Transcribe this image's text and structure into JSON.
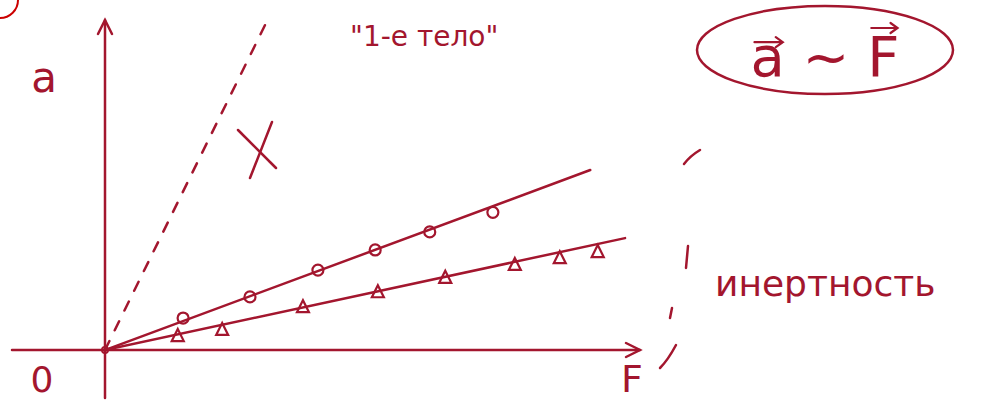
{
  "chart_data": {
    "type": "line",
    "x_label": "F",
    "y_label": "a",
    "origin_label": "0",
    "annotations": [
      "\"1-е тело\"",
      "a ~ F",
      "инертность"
    ],
    "xlim": [
      0,
      10
    ],
    "ylim": [
      0,
      6.4
    ],
    "tick_labels": false,
    "color": "#a3162e",
    "series": [
      {
        "type": "scatter",
        "marker": "circle",
        "line_style": "none",
        "color": "#a3162e",
        "x": [
          1.46,
          2.71,
          3.98,
          5.05,
          6.07,
          7.25
        ],
        "values": [
          0.62,
          1.03,
          1.55,
          1.94,
          2.29,
          2.67
        ]
      },
      {
        "type": "line",
        "marker": "none",
        "line_style": "solid",
        "color": "#a3162e",
        "x": [
          0,
          9.07
        ],
        "values": [
          0,
          3.49
        ]
      },
      {
        "type": "scatter",
        "marker": "triangle",
        "line_style": "none",
        "color": "#a3162e",
        "x": [
          1.36,
          2.19,
          3.7,
          5.1,
          6.36,
          7.66,
          8.5,
          9.21
        ],
        "values": [
          0.27,
          0.39,
          0.83,
          1.12,
          1.4,
          1.65,
          1.78,
          1.9
        ]
      },
      {
        "type": "line",
        "marker": "none",
        "line_style": "solid",
        "color": "#a3162e",
        "x": [
          0,
          9.72
        ],
        "values": [
          0,
          2.17
        ]
      },
      {
        "type": "line",
        "marker": "none",
        "line_style": "dashed",
        "color": "#a3162e",
        "x": [
          0,
          2.99
        ],
        "values": [
          0,
          6.3
        ]
      }
    ]
  }
}
